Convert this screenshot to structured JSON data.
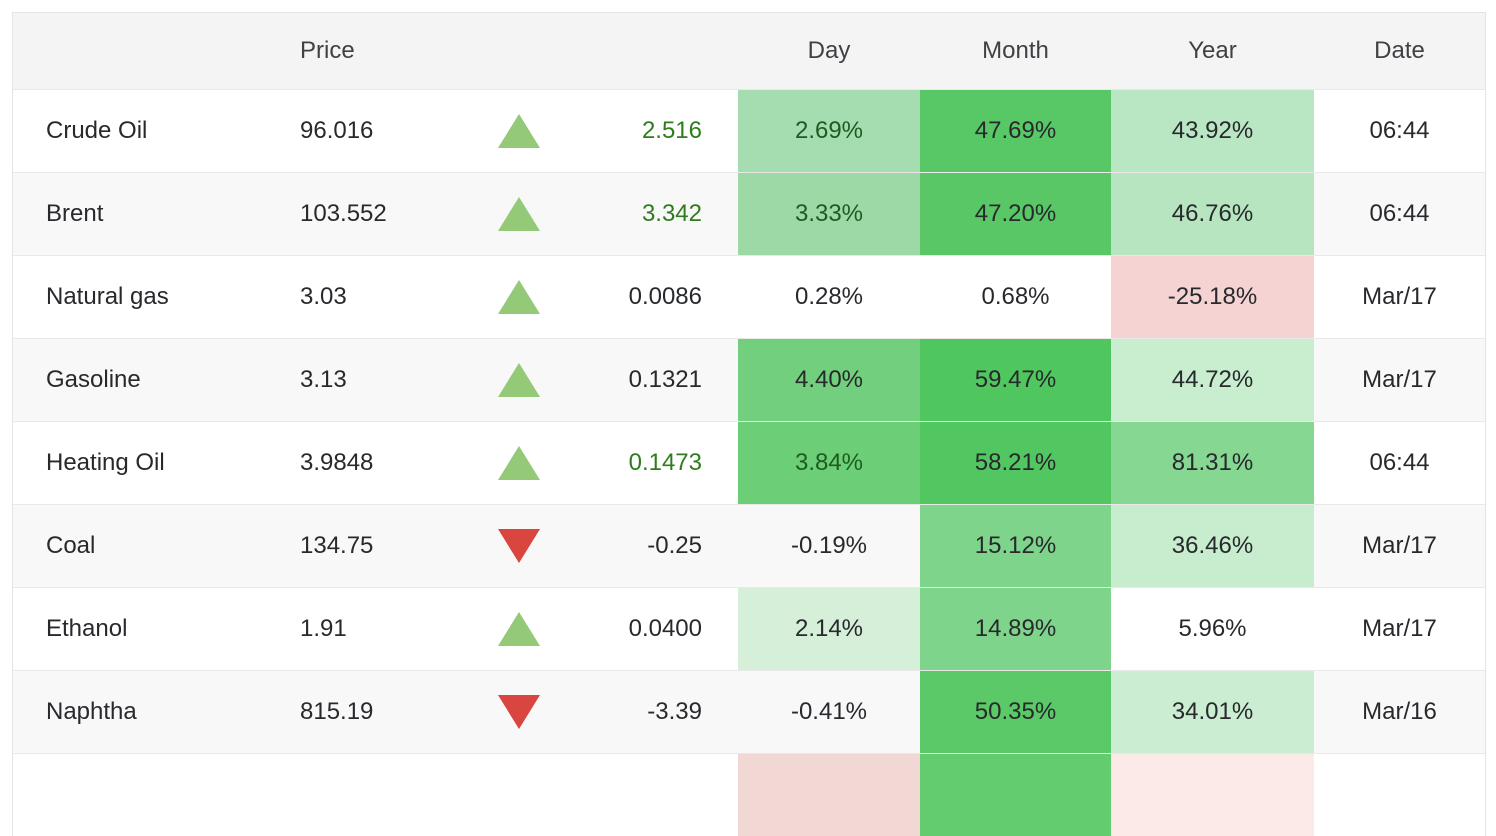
{
  "header": {
    "name": "",
    "price": "Price",
    "day": "Day",
    "month": "Month",
    "year": "Year",
    "date": "Date"
  },
  "colors": {
    "css_vars": {
      "arrow-up": "#93c977",
      "arrow-down": "#d9453f",
      "text-dark": "#27292c",
      "header-bg": "#f4f4f5",
      "row-alt-bg": "#f8f8f8",
      "border": "#e4e4e4"
    },
    "positive_text": "#2f7c1f",
    "negative_cell": "#f5d3d2"
  },
  "rows": [
    {
      "name": "Crude Oil",
      "price": "96.016",
      "dir": "up",
      "change": "2.516",
      "change_color": "#2f7c1f",
      "day": "2.69%",
      "day_bg": "#a6ddb0",
      "day_color": "#1e5b22",
      "month": "47.69%",
      "month_bg": "#58c765",
      "year": "43.92%",
      "year_bg": "#bae7c3",
      "date": "06:44"
    },
    {
      "name": "Brent",
      "price": "103.552",
      "dir": "up",
      "change": "3.342",
      "change_color": "#2f7c1f",
      "day": "3.33%",
      "day_bg": "#9cd9a6",
      "day_color": "#1e5b22",
      "month": "47.20%",
      "month_bg": "#59c766",
      "year": "46.76%",
      "year_bg": "#b6e5c0",
      "date": "06:44"
    },
    {
      "name": "Natural gas",
      "price": "3.03",
      "dir": "up",
      "change": "0.0086",
      "change_color": null,
      "day": "0.28%",
      "day_bg": null,
      "day_color": null,
      "month": "0.68%",
      "month_bg": null,
      "year": "-25.18%",
      "year_bg": "#f5d3d2",
      "date": "Mar/17"
    },
    {
      "name": "Gasoline",
      "price": "3.13",
      "dir": "up",
      "change": "0.1321",
      "change_color": null,
      "day": "4.40%",
      "day_bg": "#72cf7e",
      "day_color": null,
      "month": "59.47%",
      "month_bg": "#50c65f",
      "year": "44.72%",
      "year_bg": "#c8edcf",
      "date": "Mar/17"
    },
    {
      "name": "Heating Oil",
      "price": "3.9848",
      "dir": "up",
      "change": "0.1473",
      "change_color": "#2f7c1f",
      "day": "3.84%",
      "day_bg": "#6ccf77",
      "day_color": "#1d5c20",
      "month": "58.21%",
      "month_bg": "#52c761",
      "year": "81.31%",
      "year_bg": "#85d792",
      "date": "06:44"
    },
    {
      "name": "Coal",
      "price": "134.75",
      "dir": "down",
      "change": "-0.25",
      "change_color": null,
      "day": "-0.19%",
      "day_bg": null,
      "day_color": null,
      "month": "15.12%",
      "month_bg": "#7ed48a",
      "year": "36.46%",
      "year_bg": "#c7ecce",
      "date": "Mar/17"
    },
    {
      "name": "Ethanol",
      "price": "1.91",
      "dir": "up",
      "change": "0.0400",
      "change_color": null,
      "day": "2.14%",
      "day_bg": "#d5efd9",
      "day_color": null,
      "month": "14.89%",
      "month_bg": "#7fd48b",
      "year": "5.96%",
      "year_bg": null,
      "date": "Mar/17"
    },
    {
      "name": "Naphtha",
      "price": "815.19",
      "dir": "down",
      "change": "-3.39",
      "change_color": null,
      "day": "-0.41%",
      "day_bg": null,
      "day_color": null,
      "month": "50.35%",
      "month_bg": "#5bc968",
      "year": "34.01%",
      "year_bg": "#cbeed2",
      "date": "Mar/16"
    },
    {
      "name": "",
      "price": "",
      "dir": "none",
      "change": "",
      "change_color": null,
      "day": "",
      "day_bg": "#f1d8d5",
      "day_color": null,
      "month": "",
      "month_bg": "#63cc6e",
      "year": "",
      "year_bg": "#fbeae8",
      "date": ""
    }
  ]
}
